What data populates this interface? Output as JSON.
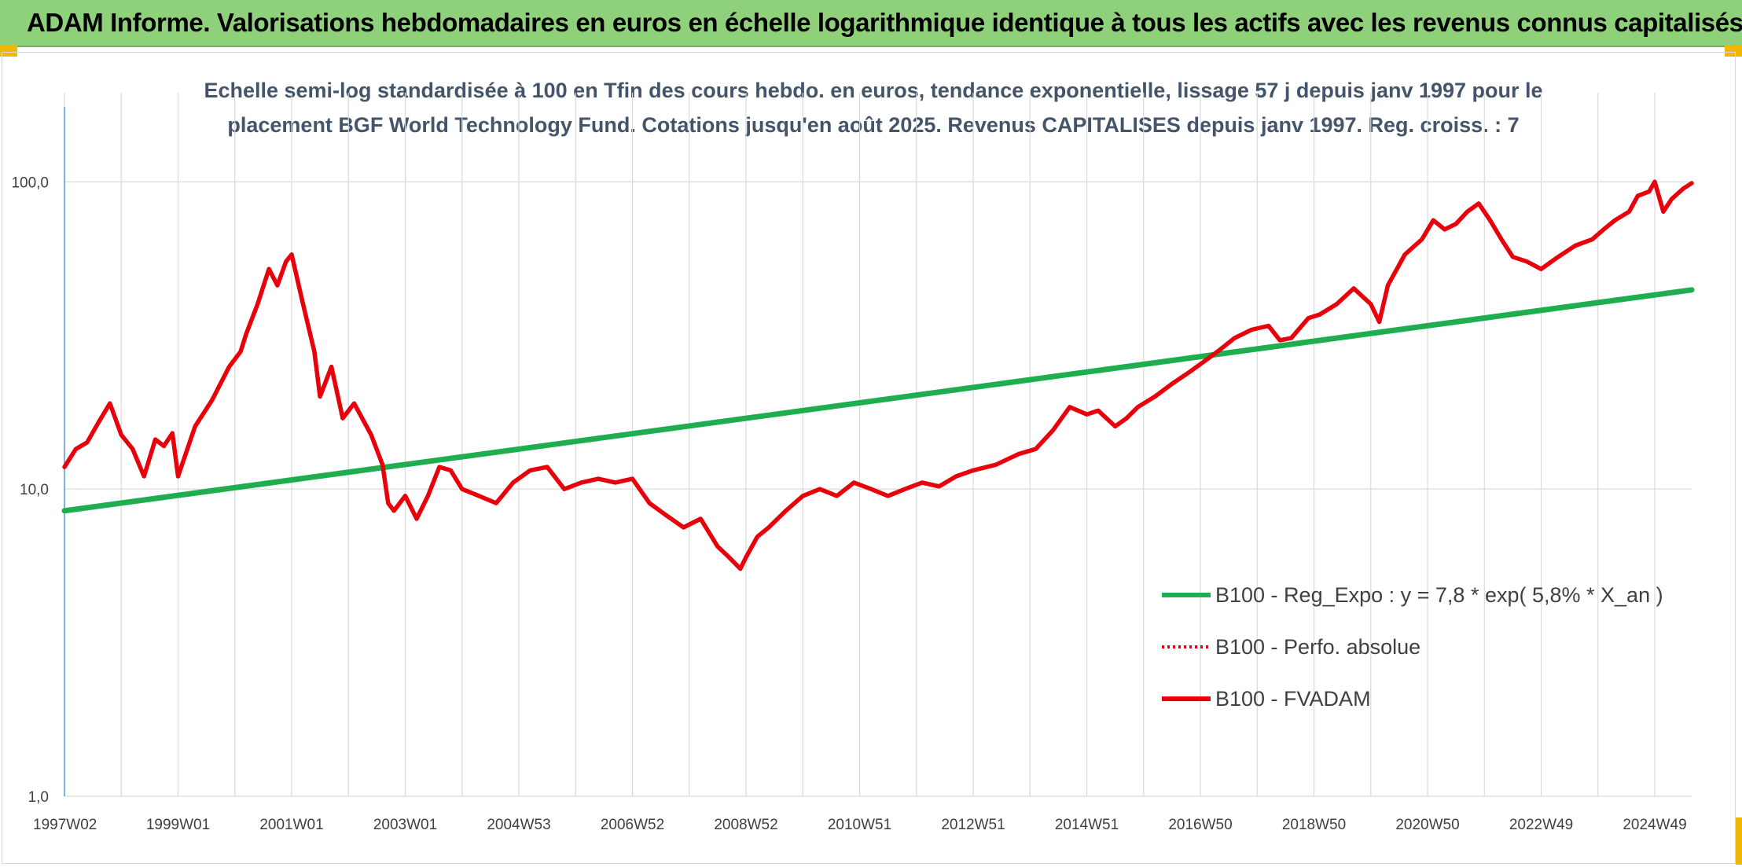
{
  "banner": {
    "title": "ADAM Informe. Valorisations hebdomadaires en euros en échelle logarithmique identique à tous les actifs avec les revenus connus capitalisés"
  },
  "colors": {
    "banner": "#8fd07a",
    "accent_corner": "#f2b705",
    "regression": "#1fae4f",
    "fvadam": "#e8000b",
    "perfo": "#e8000b"
  },
  "chart_data": {
    "type": "line",
    "title_lines": [
      "Echelle semi-log standardisée à 100 en Tfin des cours hebdo. en euros, tendance exponentielle, lissage 57 j depuis janv 1997 pour le",
      "placement BGF World Technology Fund. Cotations jusqu'en août 2025. Revenus CAPITALISES depuis janv 1997. Reg. croiss. : 7"
    ],
    "y_scale": "log",
    "ylim": [
      1,
      100
    ],
    "yticks": [
      {
        "value": 1,
        "label": "1,0"
      },
      {
        "value": 10,
        "label": "10,0"
      },
      {
        "value": 100,
        "label": "100,0"
      }
    ],
    "xlim": [
      1997.0,
      2025.65
    ],
    "xticks": [
      {
        "value": 1997.0,
        "label": "1997W02"
      },
      {
        "value": 1999.0,
        "label": "1999W01"
      },
      {
        "value": 2001.0,
        "label": "2001W01"
      },
      {
        "value": 2003.0,
        "label": "2003W01"
      },
      {
        "value": 2005.0,
        "label": "2004W53"
      },
      {
        "value": 2007.0,
        "label": "2006W52"
      },
      {
        "value": 2009.0,
        "label": "2008W52"
      },
      {
        "value": 2011.0,
        "label": "2010W51"
      },
      {
        "value": 2013.0,
        "label": "2012W51"
      },
      {
        "value": 2015.0,
        "label": "2014W51"
      },
      {
        "value": 2017.0,
        "label": "2016W50"
      },
      {
        "value": 2019.0,
        "label": "2018W50"
      },
      {
        "value": 2021.0,
        "label": "2020W50"
      },
      {
        "value": 2023.0,
        "label": "2022W49"
      },
      {
        "value": 2025.0,
        "label": "2024W49"
      }
    ],
    "grid": true,
    "legend_position": "lower-right",
    "legend": [
      {
        "name": "B100 - Reg_Expo : y = 7,8 * exp( 5,8% *  X_an )",
        "style": "solid",
        "color": "#1fae4f"
      },
      {
        "name": "B100 - Perfo. absolue",
        "style": "dotted",
        "color": "#e8000b"
      },
      {
        "name": "B100 - FVADAM",
        "style": "solid",
        "color": "#e8000b"
      }
    ],
    "series": [
      {
        "name": "B100 - Reg_Expo : y = 7,8 * exp( 5,8% *  X_an )",
        "color": "#1fae4f",
        "x": [
          1997.0,
          2025.65
        ],
        "y": [
          8.5,
          44.5
        ]
      },
      {
        "name": "B100 - FVADAM",
        "color": "#e8000b",
        "x": [
          1997.0,
          1997.2,
          1997.4,
          1997.6,
          1997.8,
          1998.0,
          1998.2,
          1998.4,
          1998.6,
          1998.75,
          1998.9,
          1999.0,
          1999.3,
          1999.6,
          1999.9,
          2000.1,
          2000.2,
          2000.4,
          2000.6,
          2000.75,
          2000.9,
          2001.0,
          2001.2,
          2001.4,
          2001.5,
          2001.7,
          2001.9,
          2002.1,
          2002.4,
          2002.6,
          2002.7,
          2002.8,
          2003.0,
          2003.2,
          2003.4,
          2003.6,
          2003.8,
          2004.0,
          2004.3,
          2004.6,
          2004.9,
          2005.2,
          2005.5,
          2005.8,
          2006.1,
          2006.4,
          2006.7,
          2007.0,
          2007.3,
          2007.6,
          2007.9,
          2008.2,
          2008.5,
          2008.7,
          2008.9,
          2009.0,
          2009.2,
          2009.4,
          2009.7,
          2010.0,
          2010.3,
          2010.6,
          2010.9,
          2011.2,
          2011.5,
          2011.8,
          2012.1,
          2012.4,
          2012.7,
          2013.0,
          2013.4,
          2013.8,
          2014.1,
          2014.4,
          2014.7,
          2015.0,
          2015.2,
          2015.5,
          2015.7,
          2015.9,
          2016.2,
          2016.5,
          2016.8,
          2017.0,
          2017.3,
          2017.6,
          2017.9,
          2018.2,
          2018.4,
          2018.6,
          2018.9,
          2019.1,
          2019.4,
          2019.7,
          2020.0,
          2020.15,
          2020.3,
          2020.6,
          2020.9,
          2021.1,
          2021.3,
          2021.5,
          2021.7,
          2021.9,
          2022.1,
          2022.3,
          2022.5,
          2022.75,
          2023.0,
          2023.3,
          2023.6,
          2023.9,
          2024.1,
          2024.3,
          2024.55,
          2024.7,
          2024.9,
          2025.0,
          2025.15,
          2025.3,
          2025.5,
          2025.65
        ],
        "y": [
          11.8,
          13.5,
          14.2,
          16.5,
          19.0,
          15.0,
          13.5,
          11.0,
          14.5,
          13.8,
          15.2,
          11.0,
          16.0,
          19.5,
          25.0,
          28.0,
          32.0,
          40.0,
          52.0,
          46.0,
          55.0,
          58.0,
          40.0,
          28.0,
          20.0,
          25.0,
          17.0,
          19.0,
          15.0,
          12.0,
          9.0,
          8.5,
          9.5,
          8.0,
          9.5,
          11.8,
          11.5,
          10.0,
          9.5,
          9.0,
          10.5,
          11.5,
          11.8,
          10.0,
          10.5,
          10.8,
          10.5,
          10.8,
          9.0,
          8.2,
          7.5,
          8.0,
          6.5,
          6.0,
          5.5,
          6.0,
          7.0,
          7.5,
          8.5,
          9.5,
          10.0,
          9.5,
          10.5,
          10.0,
          9.5,
          10.0,
          10.5,
          10.2,
          11.0,
          11.5,
          12.0,
          13.0,
          13.5,
          15.5,
          18.5,
          17.5,
          18.0,
          16.0,
          17.0,
          18.5,
          20.0,
          22.0,
          24.0,
          25.5,
          28.0,
          31.0,
          33.0,
          34.0,
          30.5,
          31.0,
          36.0,
          37.0,
          40.0,
          45.0,
          40.0,
          35.0,
          46.0,
          58.0,
          65.0,
          75.0,
          70.0,
          73.0,
          80.0,
          85.0,
          75.0,
          65.0,
          57.0,
          55.0,
          52.0,
          57.0,
          62.0,
          65.0,
          70.0,
          75.0,
          80.0,
          90.0,
          93.0,
          100.0,
          80.0,
          88.0,
          95.0,
          99.0
        ]
      }
    ]
  }
}
